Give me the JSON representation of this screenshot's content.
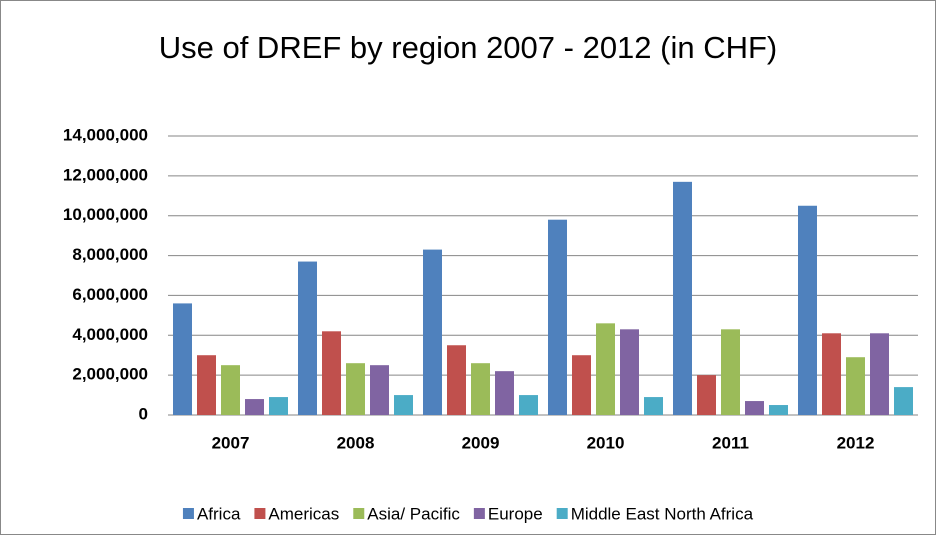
{
  "chart_data": {
    "type": "bar",
    "title": "Use of DREF by region 2007 - 2012 (in CHF)",
    "categories": [
      "2007",
      "2008",
      "2009",
      "2010",
      "2011",
      "2012"
    ],
    "series": [
      {
        "name": "Africa",
        "color": "#4f81bd",
        "values": [
          5600000,
          7700000,
          8300000,
          9800000,
          11700000,
          10500000
        ]
      },
      {
        "name": "Americas",
        "color": "#c0504d",
        "values": [
          3000000,
          4200000,
          3500000,
          3000000,
          2000000,
          4100000
        ]
      },
      {
        "name": "Asia/ Pacific",
        "color": "#9bbb59",
        "values": [
          2500000,
          2600000,
          2600000,
          4600000,
          4300000,
          2900000
        ]
      },
      {
        "name": "Europe",
        "color": "#8064a2",
        "values": [
          800000,
          2500000,
          2200000,
          4300000,
          700000,
          4100000
        ]
      },
      {
        "name": "Middle East North Africa",
        "color": "#4bacc6",
        "values": [
          900000,
          1000000,
          1000000,
          900000,
          500000,
          1400000
        ]
      }
    ],
    "ylim": [
      0,
      14000000
    ],
    "yticks": [
      0,
      {
        "value": 2000000,
        "label": "2,000,000"
      },
      {
        "value": 4000000,
        "label": "4,000,000"
      },
      {
        "value": 6000000,
        "label": "6,000,000"
      },
      {
        "value": 8000000,
        "label": "8,000,000"
      },
      {
        "value": 10000000,
        "label": "10,000,000"
      },
      {
        "value": 12000000,
        "label": "12,000,000"
      },
      {
        "value": 14000000,
        "label": "14,000,000"
      }
    ],
    "grid": true,
    "legend": "bottom"
  }
}
